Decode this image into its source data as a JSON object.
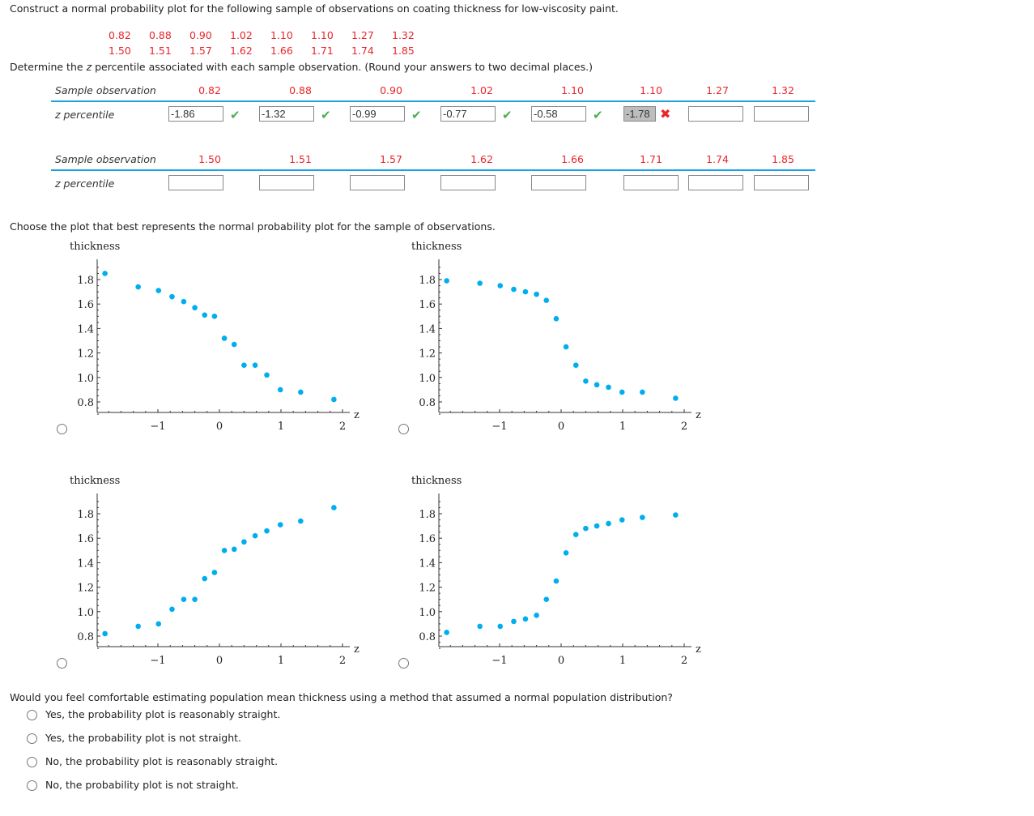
{
  "intro": "Construct a normal probability plot for the following sample of observations on coating thickness for low-viscosity paint.",
  "sample_row1": [
    "0.82",
    "0.88",
    "0.90",
    "1.02",
    "1.10",
    "1.10",
    "1.27",
    "1.32"
  ],
  "sample_row2": [
    "1.50",
    "1.51",
    "1.57",
    "1.62",
    "1.66",
    "1.71",
    "1.74",
    "1.85"
  ],
  "instruction_pre": "Determine the ",
  "instruction_z": "z",
  "instruction_post": " percentile associated with each sample observation. (Round your answers to two decimal places.)",
  "table": {
    "row_label_obs": "Sample observation",
    "row_label_z": "z percentile",
    "table1": {
      "obs": [
        "0.82",
        "0.88",
        "0.90",
        "1.02",
        "1.10",
        "1.10",
        "1.27",
        "1.32"
      ],
      "answers": [
        "-1.86",
        "-1.32",
        "-0.99",
        "-0.77",
        "-0.58",
        "-1.78",
        "",
        ""
      ],
      "status": [
        "correct",
        "correct",
        "correct",
        "correct",
        "correct",
        "incorrect",
        "",
        ""
      ]
    },
    "table2": {
      "obs": [
        "1.50",
        "1.51",
        "1.57",
        "1.62",
        "1.66",
        "1.71",
        "1.74",
        "1.85"
      ],
      "answers": [
        "",
        "",
        "",
        "",
        "",
        "",
        "",
        ""
      ]
    }
  },
  "choose_text": "Choose the plot that best represents the normal probability plot for the sample of observations.",
  "accent_color": "#1aa3e0",
  "chart_data": [
    {
      "type": "scatter",
      "ylabel": "thickness",
      "xlabel": "z",
      "xticks": [
        "-1",
        "0",
        "1",
        "2"
      ],
      "yticks": [
        "0.8",
        "1.0",
        "1.2",
        "1.4",
        "1.6",
        "1.8"
      ],
      "x": [
        -1.86,
        -1.32,
        -0.99,
        -0.77,
        -0.58,
        -0.4,
        -0.24,
        -0.08,
        0.08,
        0.24,
        0.4,
        0.58,
        0.77,
        0.99,
        1.32,
        1.86
      ],
      "y": [
        1.85,
        1.74,
        1.71,
        1.66,
        1.62,
        1.57,
        1.51,
        1.5,
        1.32,
        1.27,
        1.1,
        1.1,
        1.02,
        0.9,
        0.88,
        0.82
      ],
      "color": "#00aeef"
    },
    {
      "type": "scatter",
      "ylabel": "thickness",
      "xlabel": "z",
      "xticks": [
        "-1",
        "0",
        "1",
        "2"
      ],
      "yticks": [
        "0.8",
        "1.0",
        "1.2",
        "1.4",
        "1.6",
        "1.8"
      ],
      "x": [
        -1.86,
        -1.32,
        -0.99,
        -0.77,
        -0.58,
        -0.4,
        -0.24,
        -0.08,
        0.08,
        0.24,
        0.4,
        0.58,
        0.77,
        0.99,
        1.32,
        1.86
      ],
      "y": [
        1.79,
        1.77,
        1.75,
        1.72,
        1.7,
        1.68,
        1.63,
        1.48,
        1.25,
        1.1,
        0.97,
        0.94,
        0.92,
        0.88,
        0.88,
        0.83
      ],
      "color": "#00aeef"
    },
    {
      "type": "scatter",
      "ylabel": "thickness",
      "xlabel": "z",
      "xticks": [
        "-1",
        "0",
        "1",
        "2"
      ],
      "yticks": [
        "0.8",
        "1.0",
        "1.2",
        "1.4",
        "1.6",
        "1.8"
      ],
      "x": [
        -1.86,
        -1.32,
        -0.99,
        -0.77,
        -0.58,
        -0.4,
        -0.24,
        -0.08,
        0.08,
        0.24,
        0.4,
        0.58,
        0.77,
        0.99,
        1.32,
        1.86
      ],
      "y": [
        0.82,
        0.88,
        0.9,
        1.02,
        1.1,
        1.1,
        1.27,
        1.32,
        1.5,
        1.51,
        1.57,
        1.62,
        1.66,
        1.71,
        1.74,
        1.85
      ],
      "color": "#00aeef"
    },
    {
      "type": "scatter",
      "ylabel": "thickness",
      "xlabel": "z",
      "xticks": [
        "-1",
        "0",
        "1",
        "2"
      ],
      "yticks": [
        "0.8",
        "1.0",
        "1.2",
        "1.4",
        "1.6",
        "1.8"
      ],
      "x": [
        -1.86,
        -1.32,
        -0.99,
        -0.77,
        -0.58,
        -0.4,
        -0.24,
        -0.08,
        0.08,
        0.24,
        0.4,
        0.58,
        0.77,
        0.99,
        1.32,
        1.86
      ],
      "y": [
        0.83,
        0.88,
        0.88,
        0.92,
        0.94,
        0.97,
        1.1,
        1.25,
        1.48,
        1.63,
        1.68,
        1.7,
        1.72,
        1.75,
        1.77,
        1.79
      ],
      "color": "#00aeef"
    }
  ],
  "question2": "Would you feel comfortable estimating population mean thickness using a method that assumed a normal population distribution?",
  "options": [
    "Yes, the probability plot is reasonably straight.",
    "Yes, the probability plot is not straight.",
    "No, the probability plot is reasonably straight.",
    "No, the probability plot is not straight."
  ]
}
